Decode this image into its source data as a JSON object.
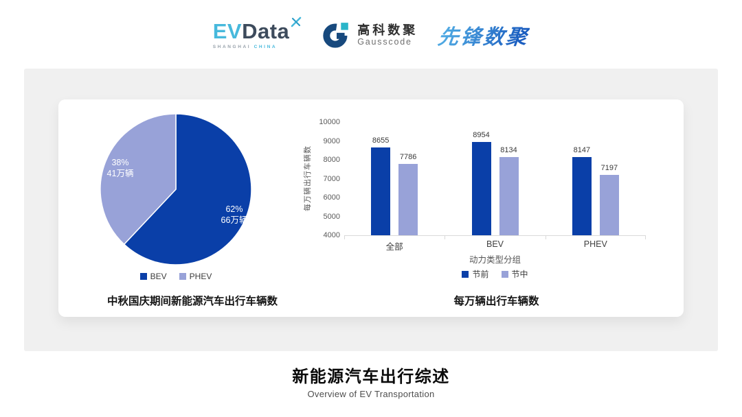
{
  "header": {
    "evdata": {
      "ev": "EV",
      "data": "Data",
      "mark": "x",
      "sub1": "SHANGHAI",
      "sub2": "CHINA"
    },
    "gausscode": {
      "cn": "高科数聚",
      "en": "Gausscode"
    },
    "pioneer": {
      "text": "先锋数聚"
    }
  },
  "footer": {
    "title": "新能源汽车出行综述",
    "subtitle": "Overview of EV Transportation"
  },
  "chart_data": [
    {
      "type": "pie",
      "title": "中秋国庆期间新能源汽车出行车辆数",
      "slices": [
        {
          "label": "BEV",
          "percent": 62,
          "value_lines": [
            "62%",
            "66万辆"
          ],
          "color": "#0A3FA8"
        },
        {
          "label": "PHEV",
          "percent": 38,
          "value_lines": [
            "38%",
            "41万辆"
          ],
          "color": "#98A2D8"
        }
      ],
      "legend": [
        "BEV",
        "PHEV"
      ],
      "legend_position": "bottom",
      "start_angle": "top, clockwise"
    },
    {
      "type": "bar",
      "title": "每万辆出行车辆数",
      "categories": [
        "全部",
        "BEV",
        "PHEV"
      ],
      "series": [
        {
          "name": "节前",
          "values": [
            8655,
            8954,
            8147
          ],
          "color": "#0A3FA8"
        },
        {
          "name": "节中",
          "values": [
            7786,
            8134,
            7197
          ],
          "color": "#98A2D8"
        }
      ],
      "xlabel": "动力类型分组",
      "ylabel": "每万辆出行车辆数",
      "ylim": [
        4000,
        10000
      ],
      "ytick_step": 1000,
      "grid": false,
      "legend_position": "bottom"
    }
  ],
  "colors": {
    "panel_bg": "#F0F0F0",
    "card_bg": "#FFFFFF",
    "primary_blue": "#0A3FA8",
    "secondary_purple": "#98A2D8",
    "evdata_cyan": "#47B9DC",
    "evdata_slate": "#3D4B5C",
    "gauss_navy": "#17497D",
    "gauss_teal": "#2AB5C9",
    "pioneer_gradient_light": "#4FA8E2",
    "pioneer_gradient_dark": "#1B5EC0",
    "axis_text": "#595959",
    "baseline": "#D9D9D9"
  }
}
